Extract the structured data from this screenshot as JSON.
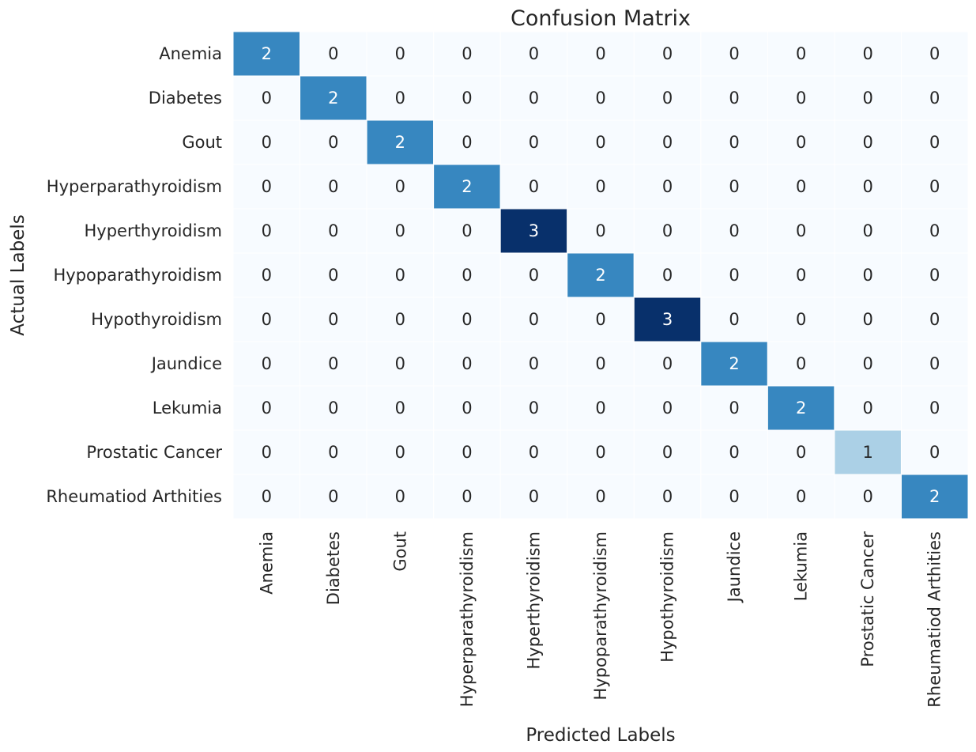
{
  "chart_data": {
    "type": "heatmap",
    "title": "Confusion Matrix",
    "xlabel": "Predicted Labels",
    "ylabel": "Actual Labels",
    "colormap": "Blues",
    "value_range": [
      0,
      3
    ],
    "colorbar": false,
    "x_categories": [
      "Anemia",
      "Diabetes",
      "Gout",
      "Hyperparathyroidism",
      "Hyperthyroidism",
      "Hypoparathyroidism",
      "Hypothyroidism",
      "Jaundice",
      "Lekumia",
      "Prostatic Cancer",
      "Rheumatiod Arthities"
    ],
    "y_categories": [
      "Anemia",
      "Diabetes",
      "Gout",
      "Hyperparathyroidism",
      "Hyperthyroidism",
      "Hypoparathyroidism",
      "Hypothyroidism",
      "Jaundice",
      "Lekumia",
      "Prostatic Cancer",
      "Rheumatiod Arthities"
    ],
    "values": [
      [
        2,
        0,
        0,
        0,
        0,
        0,
        0,
        0,
        0,
        0,
        0
      ],
      [
        0,
        2,
        0,
        0,
        0,
        0,
        0,
        0,
        0,
        0,
        0
      ],
      [
        0,
        0,
        2,
        0,
        0,
        0,
        0,
        0,
        0,
        0,
        0
      ],
      [
        0,
        0,
        0,
        2,
        0,
        0,
        0,
        0,
        0,
        0,
        0
      ],
      [
        0,
        0,
        0,
        0,
        3,
        0,
        0,
        0,
        0,
        0,
        0
      ],
      [
        0,
        0,
        0,
        0,
        0,
        2,
        0,
        0,
        0,
        0,
        0
      ],
      [
        0,
        0,
        0,
        0,
        0,
        0,
        3,
        0,
        0,
        0,
        0
      ],
      [
        0,
        0,
        0,
        0,
        0,
        0,
        0,
        2,
        0,
        0,
        0
      ],
      [
        0,
        0,
        0,
        0,
        0,
        0,
        0,
        0,
        2,
        0,
        0
      ],
      [
        0,
        0,
        0,
        0,
        0,
        0,
        0,
        0,
        0,
        1,
        0
      ],
      [
        0,
        0,
        0,
        0,
        0,
        0,
        0,
        0,
        0,
        0,
        2
      ]
    ],
    "colors": {
      "0": "#f7fbff",
      "1": "#abd0e6",
      "2": "#3787c0",
      "3": "#08306b"
    },
    "text_colors": {
      "light": "#ffffff",
      "dark": "#262626"
    }
  }
}
